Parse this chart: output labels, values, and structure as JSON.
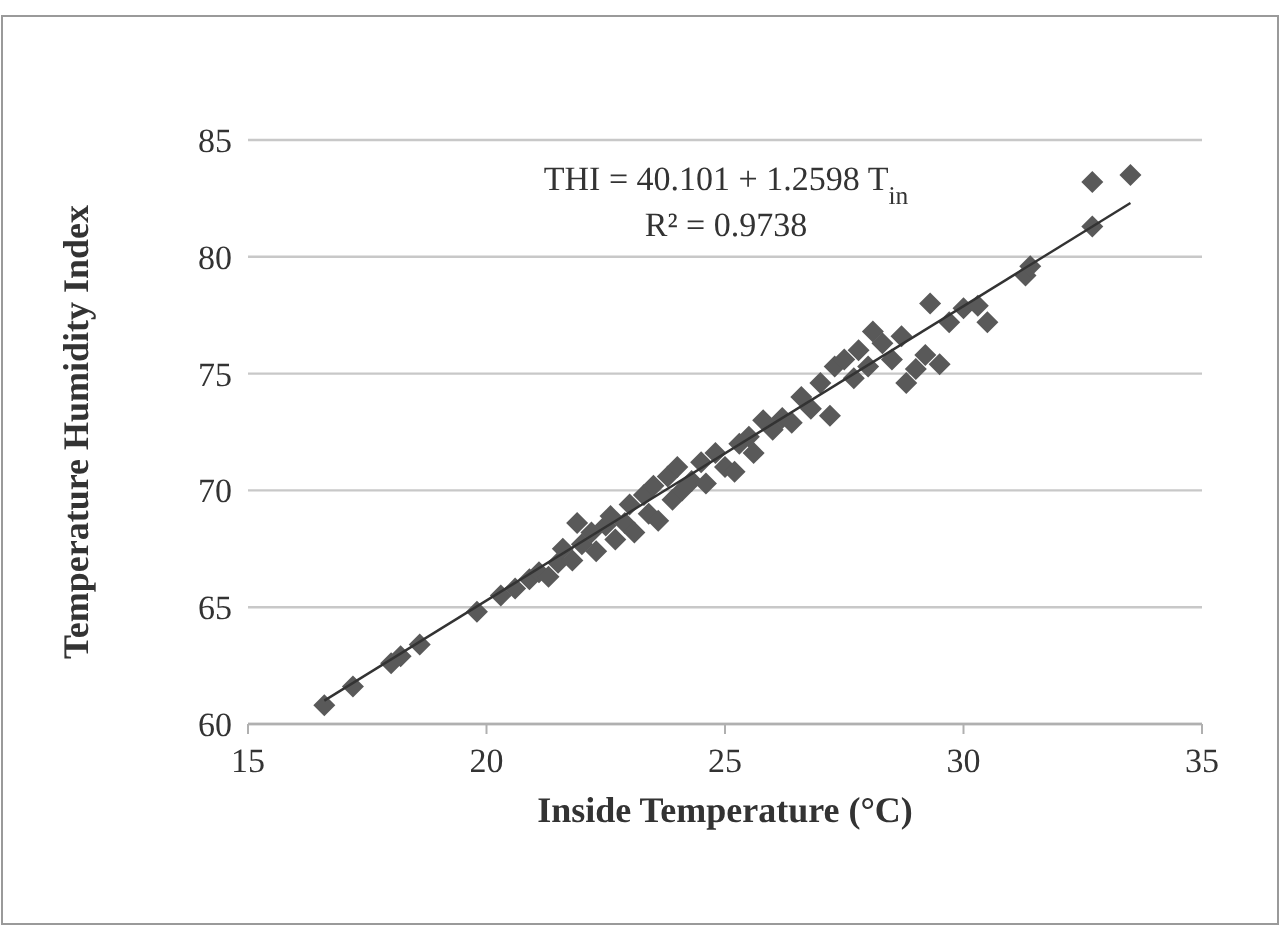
{
  "chart_data": {
    "type": "scatter",
    "xlabel": "Inside Temperature (°C)",
    "ylabel": "Temperature Humidity Index",
    "xlim": [
      15,
      35
    ],
    "xticks": [
      15,
      20,
      25,
      30,
      35
    ],
    "ylim": [
      60,
      85
    ],
    "yticks": [
      60,
      65,
      70,
      75,
      80,
      85
    ],
    "grid": "y",
    "annotations": [
      "THI = 40.101 + 1.2598 T$_{in}$",
      "R² = 0.9738"
    ],
    "series": [
      {
        "marker": "diamond",
        "color": "#595959",
        "x": [
          16.6,
          17.2,
          18.0,
          18.2,
          18.6,
          19.8,
          20.3,
          20.6,
          20.9,
          21.1,
          21.3,
          21.5,
          21.6,
          21.8,
          21.9,
          22.0,
          22.2,
          22.3,
          22.5,
          22.6,
          22.7,
          22.9,
          23.0,
          23.1,
          23.3,
          23.4,
          23.5,
          23.6,
          23.8,
          23.9,
          24.0,
          24.1,
          24.3,
          24.5,
          24.6,
          24.8,
          25.0,
          25.2,
          25.3,
          25.5,
          25.6,
          25.8,
          26.0,
          26.2,
          26.4,
          26.6,
          26.8,
          27.0,
          27.2,
          27.3,
          27.5,
          27.7,
          27.8,
          28.0,
          28.1,
          28.3,
          28.5,
          28.7,
          28.8,
          29.0,
          29.2,
          29.3,
          29.5,
          29.7,
          30.0,
          30.3,
          30.5,
          31.3,
          31.4,
          32.7,
          32.7,
          33.5
        ],
        "values": [
          60.8,
          61.6,
          62.6,
          62.9,
          63.4,
          64.8,
          65.5,
          65.8,
          66.2,
          66.5,
          66.3,
          66.9,
          67.5,
          67.0,
          68.6,
          67.7,
          68.2,
          67.4,
          68.5,
          68.9,
          67.9,
          68.6,
          69.4,
          68.2,
          69.8,
          69.0,
          70.2,
          68.7,
          70.6,
          69.6,
          71.0,
          70.0,
          70.4,
          71.2,
          70.3,
          71.6,
          71.0,
          70.8,
          72.0,
          72.3,
          71.6,
          73.0,
          72.6,
          73.1,
          72.9,
          74.0,
          73.5,
          74.6,
          73.2,
          75.3,
          75.6,
          74.8,
          76.0,
          75.3,
          76.8,
          76.3,
          75.6,
          76.6,
          74.6,
          75.2,
          75.8,
          78.0,
          75.4,
          77.2,
          77.8,
          77.9,
          77.2,
          79.2,
          79.6,
          81.3,
          83.2,
          83.5
        ]
      },
      {
        "type": "line",
        "color": "#333333",
        "x": [
          16.6,
          33.5
        ],
        "values": [
          61.0,
          82.3
        ]
      }
    ]
  }
}
